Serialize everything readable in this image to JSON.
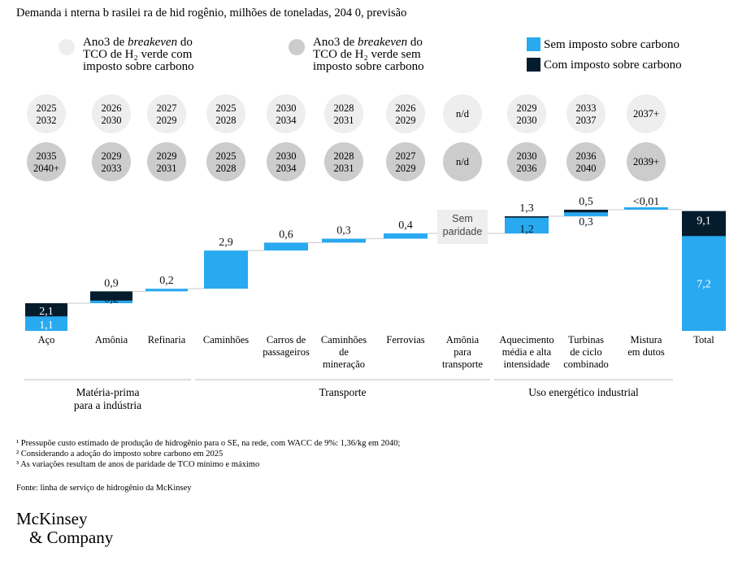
{
  "title": "Demanda i nterna b rasilei ra de hid rogênio,  milhões de toneladas, 204  0, previsão",
  "legend": {
    "circle_with_tax": [
      "Ano3 de ",
      "breakeven",
      " do",
      "TCO de H₂ verde com",
      "imposto sobre carbono"
    ],
    "circle_without_tax": [
      "Ano3 de ",
      "breakeven",
      " do",
      "TCO de H₂ verde sem",
      "imposto sobre carbono"
    ],
    "series_without_tax": "Sem imposto sobre carbono",
    "series_with_tax": "Com imposto sobre carbono"
  },
  "colors": {
    "without_tax": "#29a9f0",
    "with_tax": "#051c2c",
    "circle_light": "#eeeeee",
    "circle_dark": "#cccccc",
    "connector": "#c9c9c9"
  },
  "no_parity_label": [
    "Sem",
    "paridade"
  ],
  "chart_data": {
    "type": "bar",
    "subtype": "waterfall",
    "categories": [
      [
        "Aço"
      ],
      [
        "Amônia"
      ],
      [
        "Refinaria"
      ],
      [
        "Caminhões"
      ],
      [
        "Carros de",
        "passageiros"
      ],
      [
        "Caminhões",
        "de",
        "mineração"
      ],
      [
        "Ferrovias"
      ],
      [
        "Amônia",
        "para",
        "transporte"
      ],
      [
        "Aquecimento",
        "média e alta",
        "intensidade"
      ],
      [
        "Turbinas",
        "de ciclo",
        "combinado"
      ],
      [
        "Mistura",
        "em dutos"
      ],
      [
        "Total"
      ]
    ],
    "series": [
      {
        "name": "Sem imposto sobre carbono",
        "values": [
          1.1,
          0.2,
          0.2,
          2.9,
          0.6,
          0.3,
          0.4,
          0,
          1.2,
          0.3,
          0.01,
          7.2
        ]
      },
      {
        "name": "Com imposto sobre carbono",
        "values": [
          2.1,
          0.9,
          0.2,
          2.9,
          0.6,
          0.3,
          0.4,
          0,
          1.3,
          0.5,
          0.01,
          9.1
        ]
      }
    ],
    "value_labels": [
      {
        "with_tax": "2,1",
        "without_tax": "1,1"
      },
      {
        "with_tax": "0,9",
        "without_tax": "0,2"
      },
      {
        "single": "0,2"
      },
      {
        "single": "2,9"
      },
      {
        "single": "0,6"
      },
      {
        "single": "0,3"
      },
      {
        "single": "0,4"
      },
      {},
      {
        "with_tax": "1,3",
        "without_tax": "1,2"
      },
      {
        "with_tax": "0,5",
        "without_tax": "0,3"
      },
      {
        "single": "<0,01"
      },
      {
        "with_tax": "9,1",
        "without_tax": "7,2"
      }
    ],
    "breakeven_with_tax": [
      [
        "2025",
        "2032"
      ],
      [
        "2026",
        "2030"
      ],
      [
        "2027",
        "2029"
      ],
      [
        "2025",
        "2028"
      ],
      [
        "2030",
        "2034"
      ],
      [
        "2028",
        "2031"
      ],
      [
        "2026",
        "2029"
      ],
      [
        "n/d"
      ],
      [
        "2029",
        "2030"
      ],
      [
        "2033",
        "2037"
      ],
      [
        "2037+"
      ]
    ],
    "breakeven_without_tax": [
      [
        "2035",
        "2040+"
      ],
      [
        "2029",
        "2033"
      ],
      [
        "2029",
        "2031"
      ],
      [
        "2025",
        "2028"
      ],
      [
        "2030",
        "2034"
      ],
      [
        "2028",
        "2031"
      ],
      [
        "2027",
        "2029"
      ],
      [
        "n/d"
      ],
      [
        "2030",
        "2036"
      ],
      [
        "2036",
        "2040"
      ],
      [
        "2039+"
      ]
    ],
    "groups": [
      {
        "label": [
          "Matéria-prima",
          "para a indústria"
        ],
        "from": 0,
        "to": 2
      },
      {
        "label": [
          "Transporte"
        ],
        "from": 3,
        "to": 7
      },
      {
        "label": [
          "Uso energético industrial"
        ],
        "from": 8,
        "to": 10
      }
    ]
  },
  "footnotes": [
    "¹ Pressupõe custo estimado de produção de hidrogênio para o SE, na rede, com WACC de 9%: 1,36/kg em 2040;",
    "² Considerando a adoção do imposto sobre carbono em 2025",
    "³ As variações resultam de anos de paridade de TCO mínimo e máximo"
  ],
  "source": "Fonte: linha de serviço de hidrogênio da McKinsey",
  "logo": [
    "McKinsey",
    "& Company"
  ]
}
